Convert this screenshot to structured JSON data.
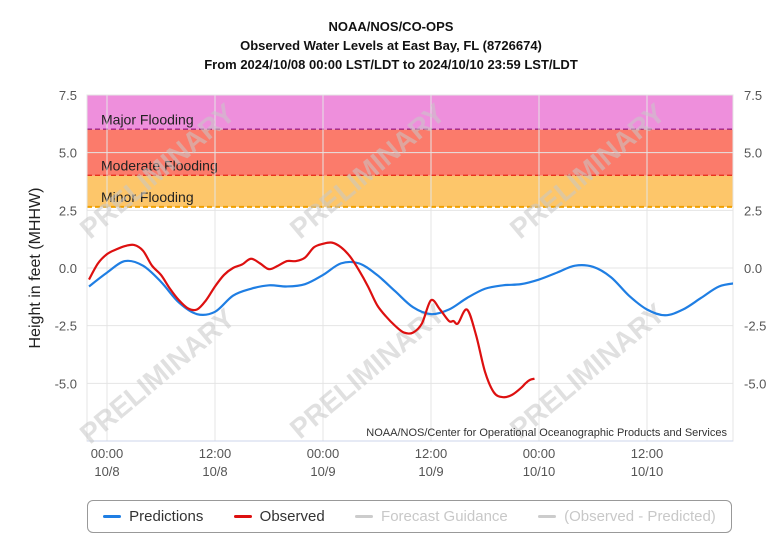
{
  "chart_data": {
    "type": "line",
    "title_lines": [
      "NOAA/NOS/CO-OPS",
      "Observed Water Levels at East Bay, FL (8726674)",
      "From 2024/10/08 00:00 LST/LDT to 2024/10/10 23:59 LST/LDT"
    ],
    "ylabel": "Height in feet (MHHW)",
    "ylim": [
      -7.5,
      7.5
    ],
    "yticks": [
      "7.5",
      "5.0",
      "2.5",
      "0.0",
      "-2.5",
      "-5.0"
    ],
    "x_ticks": [
      {
        "time": "00:00",
        "date": "10/8"
      },
      {
        "time": "12:00",
        "date": "10/8"
      },
      {
        "time": "00:00",
        "date": "10/9"
      },
      {
        "time": "12:00",
        "date": "10/9"
      },
      {
        "time": "00:00",
        "date": "10/10"
      },
      {
        "time": "12:00",
        "date": "10/10"
      }
    ],
    "grid": true,
    "flood_bands": [
      {
        "label": "Major Flooding",
        "from": 6.0,
        "to": 7.5,
        "color": "#ee8fdc",
        "line_color": "#800080"
      },
      {
        "label": "Moderate Flooding",
        "from": 4.0,
        "to": 6.0,
        "color": "#fb7b6b",
        "line_color": "#e00000"
      },
      {
        "label": "Minor Flooding",
        "from": 2.65,
        "to": 4.0,
        "color": "#fdc66a",
        "line_color": "#f0a000"
      }
    ],
    "series": [
      {
        "name": "Predictions",
        "color": "#1f7ee3",
        "x_hours": [
          -2,
          0,
          2,
          4,
          6,
          8,
          10,
          12,
          14,
          16,
          18,
          20,
          22,
          24,
          26,
          28,
          30,
          32,
          34,
          36,
          38,
          40,
          42,
          44,
          46,
          48,
          50,
          52,
          54,
          56,
          58,
          60,
          62,
          64,
          66,
          68,
          70
        ],
        "values": [
          -0.8,
          -0.2,
          0.3,
          0.1,
          -0.6,
          -1.5,
          -2.0,
          -1.9,
          -1.2,
          -0.9,
          -0.75,
          -0.8,
          -0.7,
          -0.3,
          0.2,
          0.2,
          -0.3,
          -1.0,
          -1.7,
          -2.0,
          -1.8,
          -1.3,
          -0.9,
          -0.75,
          -0.7,
          -0.5,
          -0.2,
          0.1,
          0.05,
          -0.4,
          -1.2,
          -1.8,
          -2.05,
          -1.8,
          -1.3,
          -0.8,
          -0.65
        ]
      },
      {
        "name": "Observed",
        "color": "#dd1010",
        "x_hours": [
          -2,
          -1,
          0,
          1,
          2,
          3,
          4,
          5,
          6,
          7,
          8,
          9,
          10,
          11,
          12,
          13,
          14,
          15,
          16,
          17,
          18,
          19,
          20,
          21,
          22,
          23,
          24,
          25,
          26,
          27,
          28,
          29,
          30,
          31,
          32,
          33,
          34,
          35,
          36,
          37,
          38,
          38.5,
          39,
          40,
          41,
          42,
          43,
          44,
          45,
          46,
          46.5,
          47,
          47.5
        ],
        "values": [
          -0.5,
          0.2,
          0.6,
          0.8,
          0.95,
          1.0,
          0.75,
          0.1,
          -0.3,
          -0.9,
          -1.4,
          -1.75,
          -1.8,
          -1.4,
          -0.8,
          -0.3,
          0.0,
          0.15,
          0.4,
          0.2,
          -0.05,
          0.1,
          0.3,
          0.3,
          0.45,
          0.9,
          1.05,
          1.1,
          0.9,
          0.5,
          -0.1,
          -0.8,
          -1.6,
          -2.1,
          -2.5,
          -2.8,
          -2.8,
          -2.4,
          -1.4,
          -1.8,
          -2.3,
          -2.3,
          -2.4,
          -1.8,
          -2.9,
          -4.5,
          -5.4,
          -5.6,
          -5.5,
          -5.2,
          -5.0,
          -4.85,
          -4.8
        ]
      }
    ],
    "legend": [
      {
        "name": "Predictions",
        "color": "#1f7ee3",
        "active": true
      },
      {
        "name": "Observed",
        "color": "#dd1010",
        "active": true
      },
      {
        "name": "Forecast Guidance",
        "color": "#cccccc",
        "active": false
      },
      {
        "name": "(Observed - Predicted)",
        "color": "#cccccc",
        "active": false
      }
    ],
    "credit": "NOAA/NOS/Center for Operational Oceanographic Products and Services",
    "watermark": "PRELIMINARY"
  }
}
